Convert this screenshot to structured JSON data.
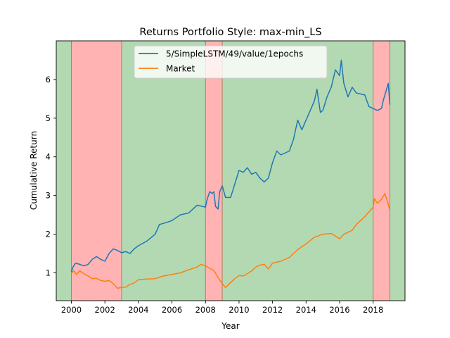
{
  "chart_data": {
    "type": "line",
    "title": "Returns Portfolio Style: max-min_LS",
    "xlabel": "Year",
    "ylabel": "Cumulative Return",
    "xlim": [
      1999.1,
      2019.9
    ],
    "ylim": [
      0.28,
      7.0
    ],
    "x_ticks": [
      2000,
      2002,
      2004,
      2006,
      2008,
      2010,
      2012,
      2014,
      2016,
      2018
    ],
    "y_ticks": [
      1,
      2,
      3,
      4,
      5,
      6
    ],
    "grid": false,
    "legend_position": "upper-center",
    "regimes": [
      {
        "start": 1999.1,
        "end": 2000.0,
        "state": "up"
      },
      {
        "start": 2000.0,
        "end": 2003.0,
        "state": "down"
      },
      {
        "start": 2003.0,
        "end": 2008.0,
        "state": "up"
      },
      {
        "start": 2008.0,
        "end": 2009.0,
        "state": "down"
      },
      {
        "start": 2009.0,
        "end": 2018.0,
        "state": "up"
      },
      {
        "start": 2018.0,
        "end": 2019.0,
        "state": "down"
      },
      {
        "start": 2019.0,
        "end": 2019.9,
        "state": "up"
      }
    ],
    "series": [
      {
        "name": "5/SimpleLSTM/49/value/1epochs",
        "color": "#1f77b4",
        "points": [
          [
            2000.0,
            1.02
          ],
          [
            2000.1,
            1.15
          ],
          [
            2000.25,
            1.25
          ],
          [
            2000.5,
            1.22
          ],
          [
            2000.75,
            1.18
          ],
          [
            2001.0,
            1.22
          ],
          [
            2001.25,
            1.35
          ],
          [
            2001.5,
            1.42
          ],
          [
            2001.75,
            1.35
          ],
          [
            2002.0,
            1.3
          ],
          [
            2002.25,
            1.5
          ],
          [
            2002.5,
            1.62
          ],
          [
            2002.75,
            1.58
          ],
          [
            2003.0,
            1.52
          ],
          [
            2003.25,
            1.55
          ],
          [
            2003.5,
            1.5
          ],
          [
            2003.75,
            1.62
          ],
          [
            2004.0,
            1.7
          ],
          [
            2004.5,
            1.82
          ],
          [
            2005.0,
            2.0
          ],
          [
            2005.25,
            2.25
          ],
          [
            2005.5,
            2.28
          ],
          [
            2006.0,
            2.35
          ],
          [
            2006.5,
            2.5
          ],
          [
            2007.0,
            2.55
          ],
          [
            2007.5,
            2.75
          ],
          [
            2008.0,
            2.7
          ],
          [
            2008.1,
            2.9
          ],
          [
            2008.25,
            3.1
          ],
          [
            2008.4,
            3.05
          ],
          [
            2008.5,
            3.1
          ],
          [
            2008.6,
            2.72
          ],
          [
            2008.75,
            2.65
          ],
          [
            2008.85,
            3.1
          ],
          [
            2009.0,
            3.25
          ],
          [
            2009.2,
            2.95
          ],
          [
            2009.5,
            2.95
          ],
          [
            2009.75,
            3.3
          ],
          [
            2010.0,
            3.65
          ],
          [
            2010.25,
            3.6
          ],
          [
            2010.5,
            3.72
          ],
          [
            2010.75,
            3.55
          ],
          [
            2011.0,
            3.6
          ],
          [
            2011.25,
            3.45
          ],
          [
            2011.5,
            3.35
          ],
          [
            2011.75,
            3.45
          ],
          [
            2012.0,
            3.85
          ],
          [
            2012.25,
            4.15
          ],
          [
            2012.5,
            4.05
          ],
          [
            2013.0,
            4.15
          ],
          [
            2013.25,
            4.45
          ],
          [
            2013.5,
            4.95
          ],
          [
            2013.75,
            4.7
          ],
          [
            2014.0,
            4.95
          ],
          [
            2014.25,
            5.2
          ],
          [
            2014.5,
            5.45
          ],
          [
            2014.65,
            5.75
          ],
          [
            2014.85,
            5.15
          ],
          [
            2015.0,
            5.2
          ],
          [
            2015.25,
            5.55
          ],
          [
            2015.5,
            5.8
          ],
          [
            2015.75,
            6.25
          ],
          [
            2016.0,
            6.1
          ],
          [
            2016.1,
            6.5
          ],
          [
            2016.25,
            5.9
          ],
          [
            2016.5,
            5.55
          ],
          [
            2016.75,
            5.8
          ],
          [
            2017.0,
            5.65
          ],
          [
            2017.5,
            5.6
          ],
          [
            2017.75,
            5.3
          ],
          [
            2018.0,
            5.25
          ],
          [
            2018.25,
            5.2
          ],
          [
            2018.5,
            5.25
          ],
          [
            2018.6,
            5.45
          ],
          [
            2018.8,
            5.75
          ],
          [
            2018.9,
            5.9
          ],
          [
            2019.0,
            5.35
          ]
        ]
      },
      {
        "name": "Market",
        "color": "#ff7f0e",
        "points": [
          [
            2000.0,
            1.0
          ],
          [
            2000.15,
            1.05
          ],
          [
            2000.3,
            0.96
          ],
          [
            2000.5,
            1.05
          ],
          [
            2000.75,
            0.98
          ],
          [
            2001.0,
            0.92
          ],
          [
            2001.25,
            0.85
          ],
          [
            2001.5,
            0.86
          ],
          [
            2001.75,
            0.8
          ],
          [
            2002.0,
            0.78
          ],
          [
            2002.25,
            0.8
          ],
          [
            2002.5,
            0.72
          ],
          [
            2002.75,
            0.6
          ],
          [
            2003.0,
            0.62
          ],
          [
            2003.25,
            0.63
          ],
          [
            2003.5,
            0.7
          ],
          [
            2003.75,
            0.74
          ],
          [
            2004.0,
            0.82
          ],
          [
            2004.5,
            0.84
          ],
          [
            2005.0,
            0.85
          ],
          [
            2005.5,
            0.92
          ],
          [
            2006.0,
            0.96
          ],
          [
            2006.5,
            1.0
          ],
          [
            2007.0,
            1.08
          ],
          [
            2007.5,
            1.15
          ],
          [
            2007.75,
            1.22
          ],
          [
            2008.0,
            1.18
          ],
          [
            2008.25,
            1.12
          ],
          [
            2008.5,
            1.06
          ],
          [
            2008.75,
            0.88
          ],
          [
            2009.0,
            0.72
          ],
          [
            2009.2,
            0.62
          ],
          [
            2009.5,
            0.75
          ],
          [
            2009.75,
            0.85
          ],
          [
            2010.0,
            0.93
          ],
          [
            2010.25,
            0.92
          ],
          [
            2010.5,
            0.98
          ],
          [
            2010.75,
            1.05
          ],
          [
            2011.0,
            1.15
          ],
          [
            2011.25,
            1.2
          ],
          [
            2011.5,
            1.22
          ],
          [
            2011.75,
            1.1
          ],
          [
            2012.0,
            1.25
          ],
          [
            2012.5,
            1.3
          ],
          [
            2013.0,
            1.4
          ],
          [
            2013.5,
            1.6
          ],
          [
            2014.0,
            1.75
          ],
          [
            2014.5,
            1.92
          ],
          [
            2015.0,
            2.0
          ],
          [
            2015.5,
            2.02
          ],
          [
            2015.75,
            1.95
          ],
          [
            2016.0,
            1.88
          ],
          [
            2016.25,
            2.0
          ],
          [
            2016.75,
            2.1
          ],
          [
            2017.0,
            2.25
          ],
          [
            2017.5,
            2.45
          ],
          [
            2018.0,
            2.7
          ],
          [
            2018.08,
            2.92
          ],
          [
            2018.25,
            2.8
          ],
          [
            2018.5,
            2.9
          ],
          [
            2018.7,
            3.05
          ],
          [
            2018.85,
            2.85
          ],
          [
            2019.0,
            2.62
          ]
        ]
      }
    ]
  }
}
